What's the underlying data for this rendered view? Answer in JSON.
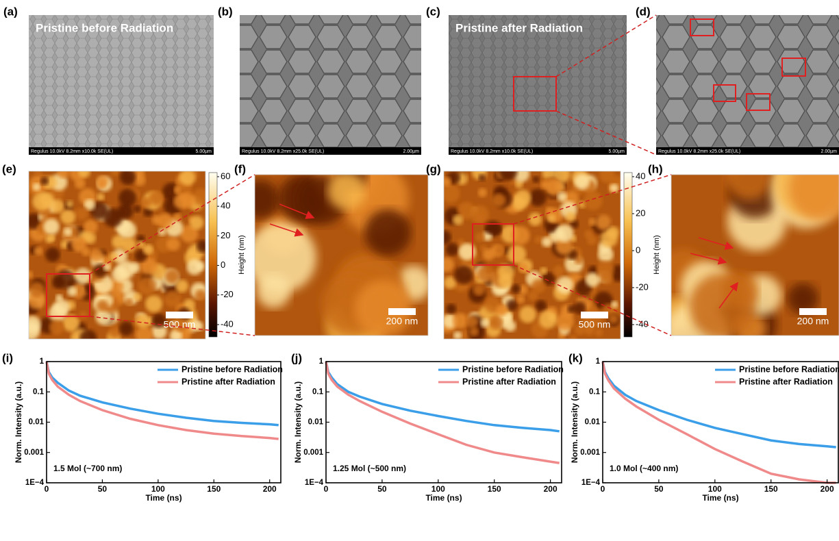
{
  "sem_panels": [
    {
      "label": "(a)",
      "caption": "Pristine before Radiation",
      "footer": "Regulus 10.0kV 8.2mm x10.0k SE(UL)",
      "scale": "5.00µm"
    },
    {
      "label": "(b)",
      "footer": "Regulus 10.0kV 8.2mm x25.0k SE(UL)",
      "scale": "2.00µm"
    },
    {
      "label": "(c)",
      "caption": "Pristine after Radiation",
      "footer": "Regulus 10.0kV 8.2mm x10.0k SE(UL)",
      "scale": "5.00µm"
    },
    {
      "label": "(d)",
      "footer": "Regulus 10.0kV 8.2mm x25.0k SE(UL)",
      "scale": "2.00µm"
    }
  ],
  "afm_panels": [
    {
      "label": "(e)",
      "scale": "500 nm",
      "colorbar": {
        "ticks": [
          60,
          40,
          20,
          0,
          -20,
          -40
        ],
        "label": "Height (nm)"
      }
    },
    {
      "label": "(f)",
      "scale": "200 nm"
    },
    {
      "label": "(g)",
      "scale": "500 nm",
      "colorbar": {
        "ticks": [
          40,
          20,
          0,
          -20,
          -40
        ],
        "label": "Height (nm)"
      }
    },
    {
      "label": "(h)",
      "scale": "200 nm"
    }
  ],
  "chart_data": [
    {
      "type": "line",
      "label": "(i)",
      "annotation": "1.5 Mol (~700 nm)",
      "xlabel": "Time (ns)",
      "ylabel": "Norm. Intensity (a.u.)",
      "log_y": true,
      "xlim": [
        0,
        210
      ],
      "ylim": [
        0.0001,
        1
      ],
      "xticks": [
        0,
        50,
        100,
        150,
        200
      ],
      "yticks": [
        1,
        0.1,
        0.01,
        0.001,
        {
          "value": 0.0001,
          "label": "1E−4"
        }
      ],
      "x": [
        0,
        2,
        5,
        10,
        20,
        30,
        50,
        75,
        100,
        125,
        150,
        175,
        200,
        208
      ],
      "series": [
        {
          "name": "Pristine before Radiation",
          "color": "#3a9ee8",
          "values": [
            1,
            0.45,
            0.3,
            0.2,
            0.11,
            0.075,
            0.045,
            0.028,
            0.019,
            0.014,
            0.011,
            0.0095,
            0.0085,
            0.008
          ]
        },
        {
          "name": "Pristine after Radiation",
          "color": "#f08a8a",
          "values": [
            1,
            0.4,
            0.25,
            0.15,
            0.08,
            0.05,
            0.025,
            0.013,
            0.008,
            0.0055,
            0.0042,
            0.0035,
            0.003,
            0.0028
          ]
        }
      ]
    },
    {
      "type": "line",
      "label": "(j)",
      "annotation": "1.25 Mol (~500 nm)",
      "xlabel": "Time (ns)",
      "ylabel": "Norm. Intensity (a.u.)",
      "log_y": true,
      "xlim": [
        0,
        210
      ],
      "ylim": [
        0.0001,
        1
      ],
      "xticks": [
        0,
        50,
        100,
        150,
        200
      ],
      "yticks": [
        1,
        0.1,
        0.01,
        0.001,
        {
          "value": 0.0001,
          "label": "1E−4"
        }
      ],
      "x": [
        0,
        2,
        5,
        10,
        20,
        30,
        50,
        75,
        100,
        125,
        150,
        175,
        200,
        208
      ],
      "series": [
        {
          "name": "Pristine before Radiation",
          "color": "#3a9ee8",
          "values": [
            1,
            0.45,
            0.3,
            0.18,
            0.1,
            0.07,
            0.04,
            0.024,
            0.016,
            0.011,
            0.008,
            0.0065,
            0.0055,
            0.005
          ]
        },
        {
          "name": "Pristine after Radiation",
          "color": "#f08a8a",
          "values": [
            1,
            0.4,
            0.25,
            0.15,
            0.08,
            0.05,
            0.022,
            0.009,
            0.004,
            0.0018,
            0.001,
            0.0007,
            0.0005,
            0.00045
          ]
        }
      ]
    },
    {
      "type": "line",
      "label": "(k)",
      "annotation": "1.0 Mol (~400 nm)",
      "xlabel": "Time (ns)",
      "ylabel": "Norm. Intensity (a.u.)",
      "log_y": true,
      "xlim": [
        0,
        210
      ],
      "ylim": [
        0.0001,
        1
      ],
      "xticks": [
        0,
        50,
        100,
        150,
        200
      ],
      "yticks": [
        1,
        0.1,
        0.01,
        0.001,
        {
          "value": 0.0001,
          "label": "1E−4"
        }
      ],
      "x": [
        0,
        2,
        5,
        10,
        20,
        30,
        50,
        75,
        100,
        125,
        150,
        175,
        200,
        208
      ],
      "series": [
        {
          "name": "Pristine before Radiation",
          "color": "#3a9ee8",
          "values": [
            1,
            0.45,
            0.28,
            0.16,
            0.08,
            0.05,
            0.025,
            0.012,
            0.0065,
            0.004,
            0.0025,
            0.0019,
            0.0016,
            0.0015
          ]
        },
        {
          "name": "Pristine after Radiation",
          "color": "#f08a8a",
          "values": [
            1,
            0.4,
            0.24,
            0.13,
            0.06,
            0.033,
            0.012,
            0.004,
            0.0013,
            0.0005,
            0.0002,
            0.00013,
            0.0001,
            0.0001
          ]
        }
      ]
    }
  ]
}
